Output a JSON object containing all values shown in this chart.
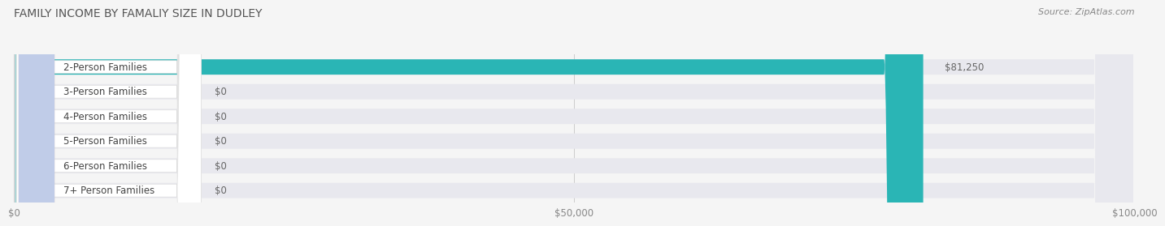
{
  "title": "FAMILY INCOME BY FAMALIY SIZE IN DUDLEY",
  "source": "Source: ZipAtlas.com",
  "categories": [
    "2-Person Families",
    "3-Person Families",
    "4-Person Families",
    "5-Person Families",
    "6-Person Families",
    "7+ Person Families"
  ],
  "values": [
    81250,
    0,
    0,
    0,
    0,
    0
  ],
  "bar_colors": [
    "#2ab5b5",
    "#a0a8d8",
    "#f0909c",
    "#f5c888",
    "#f09098",
    "#a0b8d8"
  ],
  "bar_colors_light": [
    "#7dd8d8",
    "#c8cce8",
    "#f8b8c0",
    "#f8ddb0",
    "#f8b8c0",
    "#c0cce8"
  ],
  "value_label": [
    "$81,250",
    "$0",
    "$0",
    "$0",
    "$0",
    "$0"
  ],
  "xlim": [
    0,
    100000
  ],
  "xticks": [
    0,
    50000,
    100000
  ],
  "xtick_labels": [
    "$0",
    "$50,000",
    "$100,000"
  ],
  "background_color": "#f5f5f5",
  "bar_bg_color": "#e8e8ee",
  "title_fontsize": 10,
  "source_fontsize": 8,
  "tick_fontsize": 8.5,
  "label_fontsize": 8.5
}
